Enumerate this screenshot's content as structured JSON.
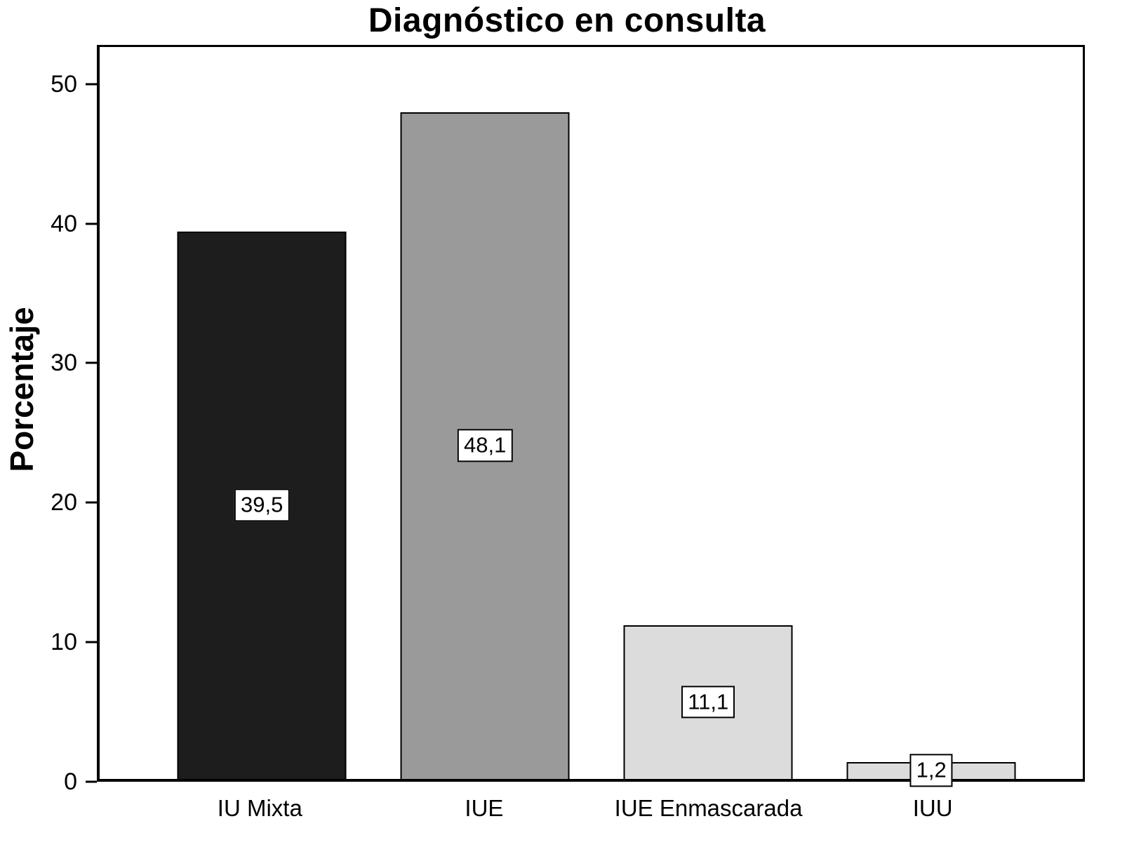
{
  "chart_data": {
    "type": "bar",
    "title": "Diagnóstico en consulta",
    "xlabel": "",
    "ylabel": "Porcentaje",
    "categories": [
      "IU Mixta",
      "IUE",
      "IUE Enmascarada",
      "IUU"
    ],
    "values": [
      39.5,
      48.1,
      11.1,
      1.2
    ],
    "value_labels": [
      "39,5",
      "48,1",
      "11,1",
      "1,2"
    ],
    "bar_colors": [
      "#1d1d1d",
      "#9a9a9a",
      "#dcdcdc",
      "#dcdcdc"
    ],
    "bar_border_color": "#000000",
    "ylim": [
      0,
      52.8
    ],
    "yticks": [
      0,
      10,
      20,
      30,
      40,
      50
    ],
    "ytick_labels": [
      "0",
      "10",
      "20",
      "30",
      "40",
      "50"
    ],
    "grid": false,
    "legend": "none",
    "background_color": "#ffffff"
  }
}
